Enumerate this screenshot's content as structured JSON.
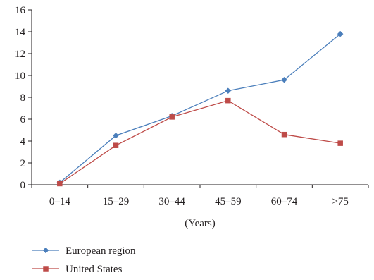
{
  "chart_data": {
    "type": "line",
    "title": "",
    "xlabel": "(Years)",
    "ylabel": "",
    "categories": [
      "0–14",
      "15–29",
      "30–44",
      "45–59",
      "60–74",
      ">75"
    ],
    "ylim": [
      0,
      16
    ],
    "yticks": [
      0,
      2,
      4,
      6,
      8,
      10,
      12,
      14,
      16
    ],
    "grid": false,
    "legend_position": "bottom-left",
    "series": [
      {
        "name": "European region",
        "color": "#4a7ebb",
        "marker": "diamond",
        "values": [
          0.2,
          4.5,
          6.3,
          8.6,
          9.6,
          13.8
        ]
      },
      {
        "name": "United States",
        "color": "#be4b48",
        "marker": "square",
        "values": [
          0.1,
          3.6,
          6.2,
          7.7,
          4.6,
          3.8
        ]
      }
    ]
  }
}
